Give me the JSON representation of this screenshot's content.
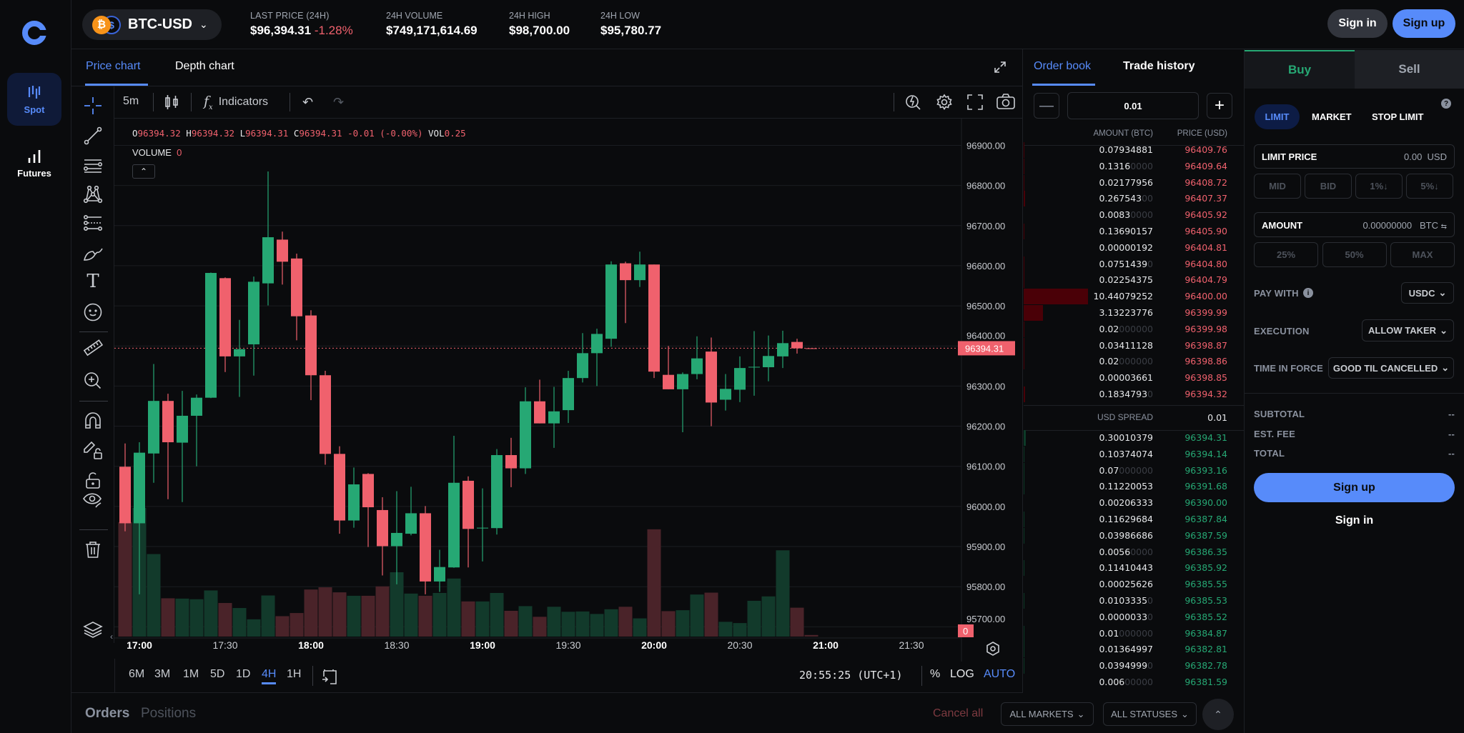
{
  "nav": {
    "items": [
      {
        "label": "Spot",
        "icon": "spot-chart-icon",
        "active": true
      },
      {
        "label": "Futures",
        "icon": "bar-chart-icon",
        "active": false
      }
    ]
  },
  "header": {
    "pair": "BTC-USD",
    "stats": [
      {
        "label": "LAST PRICE (24H)",
        "value": "$96,394.31",
        "change": "-1.28%"
      },
      {
        "label": "24H VOLUME",
        "value": "$749,171,614.69"
      },
      {
        "label": "24H HIGH",
        "value": "$98,700.00"
      },
      {
        "label": "24H LOW",
        "value": "$95,780.77"
      }
    ],
    "sign_in": "Sign in",
    "sign_up": "Sign up"
  },
  "chart_tabs": [
    "Price chart",
    "Depth chart"
  ],
  "toolbar": {
    "interval": "5m",
    "indicators": "Indicators"
  },
  "legend": {
    "o_label": "O",
    "o": "96394.32",
    "h_label": "H",
    "h": "96394.32",
    "l_label": "L",
    "l": "96394.31",
    "c_label": "C",
    "c": "96394.31",
    "change": "-0.01 (-0.00%)",
    "vol_label": "VOL",
    "vol": "0.25",
    "volume_label": "VOLUME",
    "volume_value": "0"
  },
  "chart_data": {
    "type": "candlestick",
    "interval": "5m",
    "columns": [
      "time",
      "open",
      "high",
      "low",
      "close"
    ],
    "candles": [
      [
        "16:55",
        96099,
        96157,
        95938,
        95958
      ],
      [
        "17:00",
        95958,
        96160,
        95781,
        96134
      ],
      [
        "17:05",
        96132,
        96355,
        96059,
        96263
      ],
      [
        "17:10",
        96263,
        96281,
        96018,
        96160
      ],
      [
        "17:15",
        96159,
        96288,
        96011,
        96226
      ],
      [
        "17:20",
        96226,
        96279,
        96100,
        96271
      ],
      [
        "17:25",
        96271,
        96583,
        96270,
        96582
      ],
      [
        "17:30",
        96569,
        96571,
        96335,
        96374
      ],
      [
        "17:35",
        96374,
        96465,
        96273,
        96392
      ],
      [
        "17:40",
        96404,
        96573,
        96326,
        96560
      ],
      [
        "17:45",
        96556,
        96835,
        96501,
        96671
      ],
      [
        "17:50",
        96665,
        96685,
        96553,
        96610
      ],
      [
        "17:55",
        96618,
        96630,
        96414,
        96474
      ],
      [
        "18:00",
        96476,
        96489,
        96265,
        96327
      ],
      [
        "18:05",
        96327,
        96338,
        96104,
        96131
      ],
      [
        "18:10",
        96131,
        96150,
        95932,
        95965
      ],
      [
        "18:15",
        95965,
        96097,
        95947,
        96055
      ],
      [
        "18:20",
        96081,
        96083,
        95899,
        95998
      ],
      [
        "18:25",
        95991,
        96023,
        95828,
        95901
      ],
      [
        "18:30",
        95901,
        96038,
        95806,
        95934
      ],
      [
        "18:35",
        95932,
        96049,
        95928,
        95983
      ],
      [
        "18:40",
        95983,
        96001,
        95781,
        95813
      ],
      [
        "18:45",
        95813,
        95892,
        95787,
        95849
      ],
      [
        "18:50",
        95848,
        96176,
        95847,
        96059
      ],
      [
        "18:55",
        96064,
        96075,
        95848,
        95944
      ],
      [
        "19:00",
        95947,
        96045,
        95863,
        95947
      ],
      [
        "19:05",
        95946,
        96143,
        95930,
        96128
      ],
      [
        "19:10",
        96128,
        96171,
        96048,
        96095
      ],
      [
        "19:15",
        96095,
        96297,
        96081,
        96262
      ],
      [
        "19:20",
        96262,
        96316,
        96207,
        96207
      ],
      [
        "19:25",
        96207,
        96298,
        96146,
        96237
      ],
      [
        "19:30",
        96240,
        96338,
        96208,
        96320
      ],
      [
        "19:35",
        96320,
        96432,
        96309,
        96382
      ],
      [
        "19:40",
        96382,
        96443,
        96300,
        96430
      ],
      [
        "19:45",
        96418,
        96611,
        96398,
        96603
      ],
      [
        "19:50",
        96606,
        96610,
        96457,
        96564
      ],
      [
        "19:55",
        96564,
        96635,
        96547,
        96603
      ],
      [
        "20:00",
        96603,
        96603,
        96320,
        96336
      ],
      [
        "20:05",
        96328,
        96400,
        96292,
        96292
      ],
      [
        "20:10",
        96292,
        96334,
        96185,
        96330
      ],
      [
        "20:15",
        96330,
        96424,
        96317,
        96369
      ],
      [
        "20:20",
        96386,
        96421,
        96200,
        96259
      ],
      [
        "20:25",
        96266,
        96330,
        96239,
        96293
      ],
      [
        "20:30",
        96291,
        96374,
        96260,
        96345
      ],
      [
        "20:35",
        96348,
        96437,
        96276,
        96348
      ],
      [
        "20:40",
        96347,
        96426,
        96312,
        96375
      ],
      [
        "20:45",
        96374,
        96438,
        96345,
        96407
      ],
      [
        "20:50",
        96410,
        96418,
        96381,
        96394
      ],
      [
        "20:55",
        96394.32,
        96394.32,
        96394.31,
        96394.31
      ]
    ],
    "volume_relative": [
      365,
      410,
      263,
      122,
      121,
      119,
      147,
      107,
      91,
      55,
      131,
      65,
      75,
      150,
      157,
      141,
      130,
      130,
      160,
      205,
      137,
      130,
      139,
      185,
      112,
      112,
      139,
      82,
      97,
      63,
      95,
      79,
      80,
      72,
      87,
      95,
      58,
      342,
      81,
      84,
      134,
      140,
      47,
      43,
      114,
      128,
      275,
      92,
      5
    ],
    "y_ticks": [
      "96900.00",
      "96800.00",
      "96700.00",
      "96600.00",
      "96500.00",
      "96400.00",
      "96300.00",
      "96200.00",
      "96100.00",
      "96000.00",
      "95900.00",
      "95800.00",
      "95700.00"
    ],
    "x_ticks": [
      {
        "label": "17:00",
        "bold": true
      },
      {
        "label": "17:30",
        "bold": false
      },
      {
        "label": "18:00",
        "bold": true
      },
      {
        "label": "18:30",
        "bold": false
      },
      {
        "label": "19:00",
        "bold": true
      },
      {
        "label": "19:30",
        "bold": false
      },
      {
        "label": "20:00",
        "bold": true
      },
      {
        "label": "20:30",
        "bold": false
      },
      {
        "label": "21:00",
        "bold": true
      },
      {
        "label": "21:30",
        "bold": false
      }
    ],
    "ylim": [
      95700,
      96900
    ],
    "last_price": "96394.31",
    "last_volume": "0",
    "grid": true,
    "colors": {
      "up": "#26a874",
      "down": "#f0616d",
      "up_volume": "#123a2b",
      "down_volume": "#4a2329"
    }
  },
  "range": {
    "options": [
      "6M",
      "3M",
      "1M",
      "5D",
      "1D",
      "4H",
      "1H"
    ],
    "selected": "4H",
    "clock": "20:55:25 (UTC+1)",
    "percent": "%",
    "log": "LOG",
    "auto": "AUTO"
  },
  "bottom": {
    "orders": "Orders",
    "positions": "Positions",
    "cancel_all": "Cancel all",
    "markets": "ALL MARKETS",
    "statuses": "ALL STATUSES"
  },
  "orderbook": {
    "tabs": [
      "Order book",
      "Trade history"
    ],
    "increment": "0.01",
    "col_amount": "AMOUNT (BTC)",
    "col_price": "PRICE (USD)",
    "asks": [
      {
        "amount": "0.07934881",
        "pad": "",
        "price": "96409.76"
      },
      {
        "amount": "0.1316",
        "pad": "0000",
        "price": "96409.64"
      },
      {
        "amount": "0.02177956",
        "pad": "",
        "price": "96408.72"
      },
      {
        "amount": "0.267543",
        "pad": "00",
        "price": "96407.37"
      },
      {
        "amount": "0.0083",
        "pad": "0000",
        "price": "96405.92"
      },
      {
        "amount": "0.13690157",
        "pad": "",
        "price": "96405.90"
      },
      {
        "amount": "0.00000192",
        "pad": "",
        "price": "96404.81"
      },
      {
        "amount": "0.0751439",
        "pad": "0",
        "price": "96404.80"
      },
      {
        "amount": "0.02254375",
        "pad": "",
        "price": "96404.79"
      },
      {
        "amount": "10.44079252",
        "pad": "",
        "price": "96400.00"
      },
      {
        "amount": "3.13223776",
        "pad": "",
        "price": "96399.99"
      },
      {
        "amount": "0.02",
        "pad": "000000",
        "price": "96399.98"
      },
      {
        "amount": "0.03411128",
        "pad": "",
        "price": "96398.87"
      },
      {
        "amount": "0.02",
        "pad": "000000",
        "price": "96398.86"
      },
      {
        "amount": "0.00003661",
        "pad": "",
        "price": "96398.85"
      },
      {
        "amount": "0.1834793",
        "pad": "0",
        "price": "96394.32"
      }
    ],
    "spread_label": "USD SPREAD",
    "spread": "0.01",
    "bids": [
      {
        "amount": "0.30010379",
        "pad": "",
        "price": "96394.31"
      },
      {
        "amount": "0.10374074",
        "pad": "",
        "price": "96394.14"
      },
      {
        "amount": "0.07",
        "pad": "000000",
        "price": "96393.16"
      },
      {
        "amount": "0.11220053",
        "pad": "",
        "price": "96391.68"
      },
      {
        "amount": "0.00206333",
        "pad": "",
        "price": "96390.00"
      },
      {
        "amount": "0.11629684",
        "pad": "",
        "price": "96387.84"
      },
      {
        "amount": "0.03986686",
        "pad": "",
        "price": "96387.59"
      },
      {
        "amount": "0.0056",
        "pad": "0000",
        "price": "96386.35"
      },
      {
        "amount": "0.11410443",
        "pad": "",
        "price": "96385.92"
      },
      {
        "amount": "0.00025626",
        "pad": "",
        "price": "96385.55"
      },
      {
        "amount": "0.0103335",
        "pad": "0",
        "price": "96385.53"
      },
      {
        "amount": "0.0000033",
        "pad": "0",
        "price": "96385.52"
      },
      {
        "amount": "0.01",
        "pad": "000000",
        "price": "96384.87"
      },
      {
        "amount": "0.01364997",
        "pad": "",
        "price": "96382.81"
      },
      {
        "amount": "0.0394999",
        "pad": "0",
        "price": "96382.78"
      },
      {
        "amount": "0.006",
        "pad": "00000",
        "price": "96381.59"
      }
    ]
  },
  "trade": {
    "tabs": [
      "Buy",
      "Sell"
    ],
    "order_types": [
      "LIMIT",
      "MARKET",
      "STOP LIMIT"
    ],
    "limit_price_label": "LIMIT PRICE",
    "limit_price_value": "0.00",
    "limit_price_unit": "USD",
    "price_presets": [
      "MID",
      "BID",
      "1%↓",
      "5%↓"
    ],
    "amount_label": "AMOUNT",
    "amount_value": "0.00000000",
    "amount_unit": "BTC",
    "amount_presets": [
      "25%",
      "50%",
      "MAX"
    ],
    "pay_with_label": "PAY WITH",
    "pay_with_value": "USDC",
    "execution_label": "EXECUTION",
    "execution_value": "ALLOW TAKER",
    "tif_label": "TIME IN FORCE",
    "tif_value": "GOOD TIL CANCELLED",
    "subtotal_label": "SUBTOTAL",
    "subtotal": "--",
    "fee_label": "EST. FEE",
    "fee": "--",
    "total_label": "TOTAL",
    "total": "--",
    "sign_up": "Sign up",
    "sign_in": "Sign in"
  },
  "colors": {
    "accent": "#578bfa",
    "up": "#26a874",
    "down": "#f0616d",
    "background": "#0a0b0d"
  }
}
